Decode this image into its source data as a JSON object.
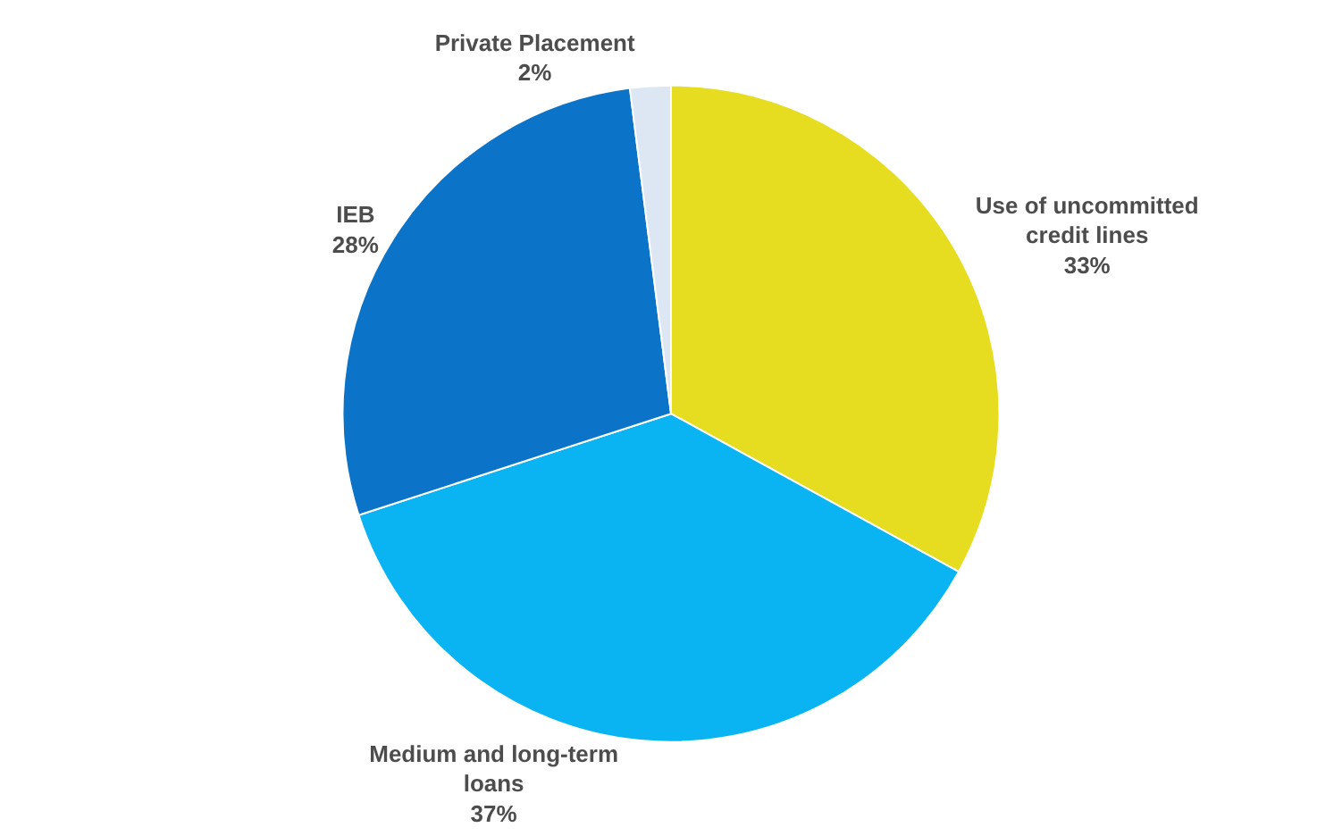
{
  "chart_data": {
    "type": "pie",
    "categories": [
      "Use of uncommitted credit lines",
      "Medium and long-term loans",
      "IEB",
      "Private Placement"
    ],
    "values": [
      33,
      37,
      28,
      2
    ],
    "value_labels": [
      "33%",
      "37%",
      "28%",
      "2%"
    ],
    "colors": [
      "#e6dc20",
      "#0ab4f2",
      "#0b74c9",
      "#dde7f3"
    ],
    "legend": false
  }
}
